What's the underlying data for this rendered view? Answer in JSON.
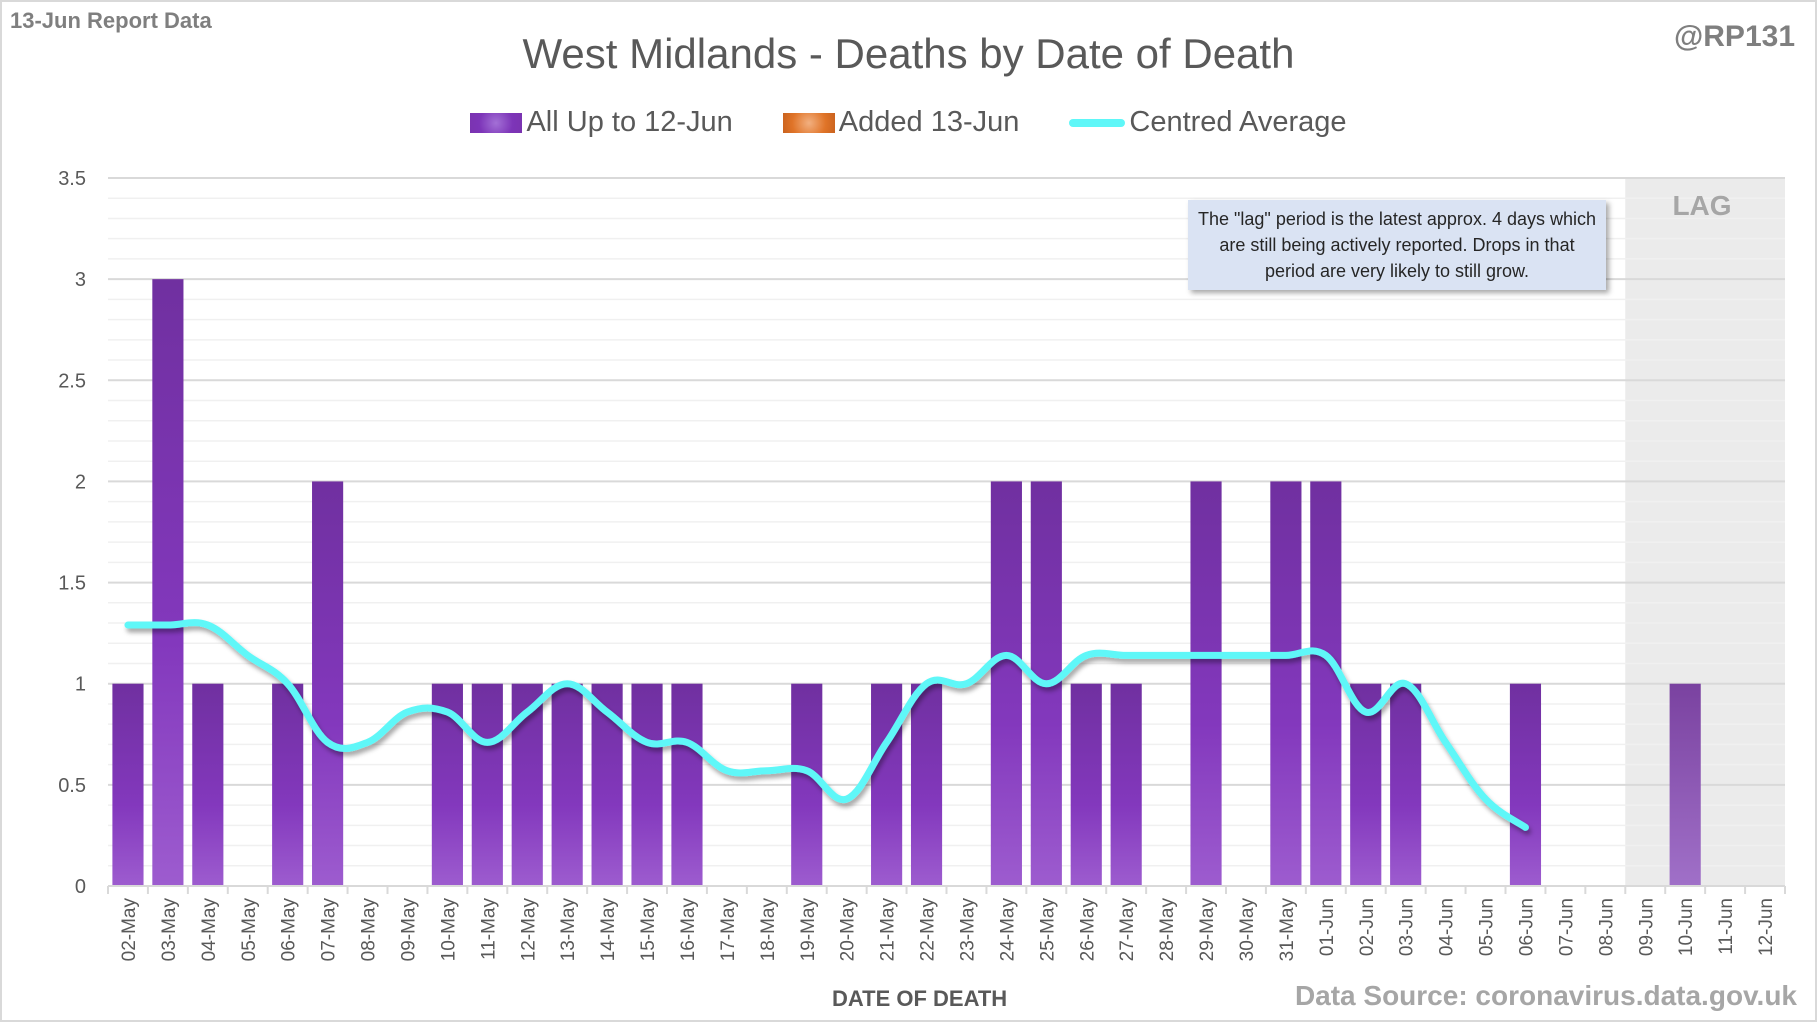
{
  "header": {
    "report_label": "13-Jun Report Data",
    "handle": "@RP131",
    "title": "West Midlands - Deaths by Date of Death"
  },
  "legend": [
    {
      "label": "All Up to 12-Jun",
      "color": "#7d35b8"
    },
    {
      "label": "Added 13-Jun",
      "color": "#e07428"
    },
    {
      "label": "Centred Average",
      "color": "#5ff7f8"
    }
  ],
  "annotation": {
    "note": "The \"lag\" period is the latest approx. 4 days which are still being actively reported.  Drops in that period are very likely to still grow.",
    "lag_label": "LAG"
  },
  "footer": {
    "xlabel": "DATE OF DEATH",
    "source": "Data Source: coronavirus.data.gov.uk"
  },
  "chart_data": {
    "type": "bar",
    "title": "West Midlands - Deaths by Date of Death",
    "xlabel": "DATE OF DEATH",
    "ylabel": "",
    "ylim": [
      0,
      3.5
    ],
    "yticks": [
      "0",
      "0.5",
      "1",
      "1.5",
      "2",
      "2.5",
      "3",
      "3.5"
    ],
    "grid": true,
    "legend_position": "top-center",
    "lag_region": [
      "09-Jun",
      "12-Jun"
    ],
    "categories": [
      "02-May",
      "03-May",
      "04-May",
      "05-May",
      "06-May",
      "07-May",
      "08-May",
      "09-May",
      "10-May",
      "11-May",
      "12-May",
      "13-May",
      "14-May",
      "15-May",
      "16-May",
      "17-May",
      "18-May",
      "19-May",
      "20-May",
      "21-May",
      "22-May",
      "23-May",
      "24-May",
      "25-May",
      "26-May",
      "27-May",
      "28-May",
      "29-May",
      "30-May",
      "31-May",
      "01-Jun",
      "02-Jun",
      "03-Jun",
      "04-Jun",
      "05-Jun",
      "06-Jun",
      "07-Jun",
      "08-Jun",
      "09-Jun",
      "10-Jun",
      "11-Jun",
      "12-Jun"
    ],
    "series": [
      {
        "name": "All Up to 12-Jun",
        "type": "bar",
        "values": [
          1,
          3,
          1,
          0,
          1,
          2,
          0,
          0,
          1,
          1,
          1,
          1,
          1,
          1,
          1,
          0,
          0,
          1,
          0,
          1,
          1,
          0,
          2,
          2,
          1,
          1,
          0,
          2,
          0,
          2,
          2,
          1,
          1,
          0,
          0,
          1,
          0,
          0,
          0,
          1,
          0,
          0
        ]
      },
      {
        "name": "Added 13-Jun",
        "type": "bar",
        "values": [
          0,
          0,
          0,
          0,
          0,
          0,
          0,
          0,
          0,
          0,
          0,
          0,
          0,
          0,
          0,
          0,
          0,
          0,
          0,
          0,
          0,
          0,
          0,
          0,
          0,
          0,
          0,
          0,
          0,
          0,
          0,
          0,
          0,
          0,
          0,
          0,
          0,
          0,
          0,
          0,
          0,
          0
        ]
      },
      {
        "name": "Centred Average",
        "type": "line",
        "values": [
          1.29,
          1.29,
          1.29,
          1.14,
          1.0,
          0.71,
          0.71,
          0.86,
          0.86,
          0.71,
          0.86,
          1.0,
          0.86,
          0.71,
          0.71,
          0.57,
          0.57,
          0.57,
          0.43,
          0.71,
          1.0,
          1.0,
          1.14,
          1.0,
          1.14,
          1.14,
          1.14,
          1.14,
          1.14,
          1.14,
          1.14,
          0.86,
          1.0,
          0.71,
          0.43,
          0.29,
          null,
          null,
          null,
          null,
          null,
          null
        ]
      }
    ]
  }
}
